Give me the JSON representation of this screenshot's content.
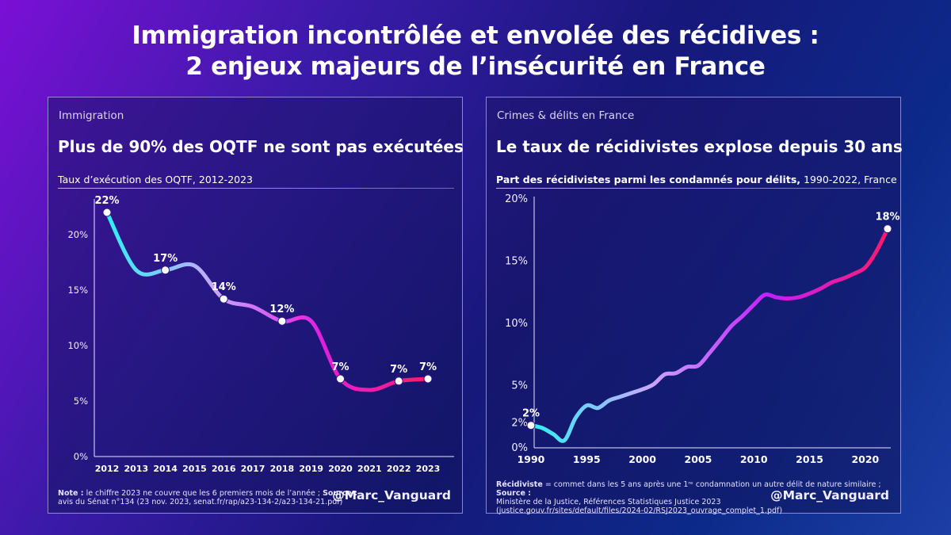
{
  "page": {
    "title_line1": "Immigration incontrôlée et envolée des récidives :",
    "title_line2": "2 enjeux majeurs de l’insécurité en France"
  },
  "left": {
    "category": "Immigration",
    "headline": "Plus de 90% des OQTF ne sont pas exécutées",
    "subtitle": "Taux d’exécution des OQTF, 2012-2023",
    "note_label": "Note :",
    "note_text1": " le chiffre 2023 ne couvre que les 6 premiers mois de l’année ; ",
    "source_label": "Source :",
    "note_text2": "avis du Sénat n°134 (23 nov. 2023, senat.fr/rap/a23-134-2/a23-134-21.pdf)",
    "handle": "@Marc_Vanguard"
  },
  "right": {
    "category": "Crimes & délits en France",
    "headline": "Le taux de récidivistes explose depuis 30 ans",
    "subtitle_bold": "Part des récidivistes parmi les condamnés pour délits,",
    "subtitle_rest": " 1990-2022, France",
    "note_bold": "Récidiviste",
    "note_text1": " = commet dans les 5 ans après une 1ʳᵉ condamnation un autre délit de nature similaire ; ",
    "source_label": "Source :",
    "note_text2": "Ministère de la Justice, Références Statistiques Justice 2023",
    "note_text3": "(justice.gouv.fr/sites/default/files/2024-02/RSJ2023_ouvrage_complet_1.pdf)",
    "handle": "@Marc_Vanguard"
  },
  "chart_data": [
    {
      "type": "line",
      "title": "Plus de 90% des OQTF ne sont pas exécutées",
      "subtitle": "Taux d’exécution des OQTF, 2012-2023",
      "x": [
        2012,
        2013,
        2014,
        2015,
        2016,
        2017,
        2018,
        2019,
        2020,
        2021,
        2022,
        2023
      ],
      "values": [
        22,
        16.8,
        16.8,
        17.2,
        14.2,
        13.5,
        12.2,
        12.2,
        7,
        6,
        6.8,
        7
      ],
      "labels": [
        {
          "x": 2012,
          "value": 22,
          "text": "22%"
        },
        {
          "x": 2014,
          "value": 16.8,
          "text": "17%"
        },
        {
          "x": 2016,
          "value": 14.2,
          "text": "14%"
        },
        {
          "x": 2018,
          "value": 12.2,
          "text": "12%"
        },
        {
          "x": 2020,
          "value": 7,
          "text": "7%"
        },
        {
          "x": 2022,
          "value": 6.8,
          "text": "7%"
        },
        {
          "x": 2023,
          "value": 7,
          "text": "7%"
        }
      ],
      "xlim": [
        2012,
        2023
      ],
      "ylim": [
        0,
        23
      ],
      "yticks": [
        {
          "v": 0,
          "t": "0%"
        },
        {
          "v": 5,
          "t": "5%"
        },
        {
          "v": 10,
          "t": "10%"
        },
        {
          "v": 15,
          "t": "15%"
        },
        {
          "v": 20,
          "t": "20%"
        }
      ],
      "xticks": [
        2012,
        2013,
        2014,
        2015,
        2016,
        2017,
        2018,
        2019,
        2020,
        2021,
        2022,
        2023
      ],
      "grid": false,
      "colors": [
        "#2ef0f0",
        "#c9a8ff",
        "#e01fe0",
        "#ff1a6b"
      ]
    },
    {
      "type": "line",
      "title": "Le taux de récidivistes explose depuis 30 ans",
      "subtitle": "Part des récidivistes parmi les condamnés pour délits, 1990-2022, France",
      "x": [
        1990,
        1991,
        1992,
        1993,
        1994,
        1995,
        1996,
        1997,
        1998,
        1999,
        2000,
        2001,
        2002,
        2003,
        2004,
        2005,
        2006,
        2007,
        2008,
        2009,
        2010,
        2011,
        2012,
        2013,
        2014,
        2015,
        2016,
        2017,
        2018,
        2019,
        2020,
        2021,
        2022
      ],
      "values": [
        1.8,
        1.6,
        1.1,
        0.6,
        2.4,
        3.4,
        3.2,
        3.8,
        4.1,
        4.4,
        4.7,
        5.1,
        5.9,
        6.0,
        6.5,
        6.6,
        7.6,
        8.7,
        9.8,
        10.6,
        11.5,
        12.3,
        12.1,
        12.0,
        12.1,
        12.4,
        12.8,
        13.3,
        13.6,
        14.0,
        14.5,
        15.8,
        17.6
      ],
      "labels": [
        {
          "x": 1990,
          "value": 1.8,
          "text": "2%"
        },
        {
          "x": 2022,
          "value": 17.6,
          "text": "18%"
        }
      ],
      "xlim": [
        1990,
        2022
      ],
      "ylim": [
        0,
        20
      ],
      "yticks": [
        {
          "v": 0,
          "t": "0%"
        },
        {
          "v": 5,
          "t": "5%"
        },
        {
          "v": 10,
          "t": "10%"
        },
        {
          "v": 15,
          "t": "15%"
        },
        {
          "v": 20,
          "t": "20%"
        }
      ],
      "extra_ytick": {
        "v": 2,
        "t": "2%"
      },
      "xticks": [
        1990,
        1995,
        2000,
        2005,
        2010,
        2015,
        2020
      ],
      "grid": false,
      "colors": [
        "#2ef0f0",
        "#c9a8ff",
        "#c21fff",
        "#ff1a6b"
      ]
    }
  ]
}
